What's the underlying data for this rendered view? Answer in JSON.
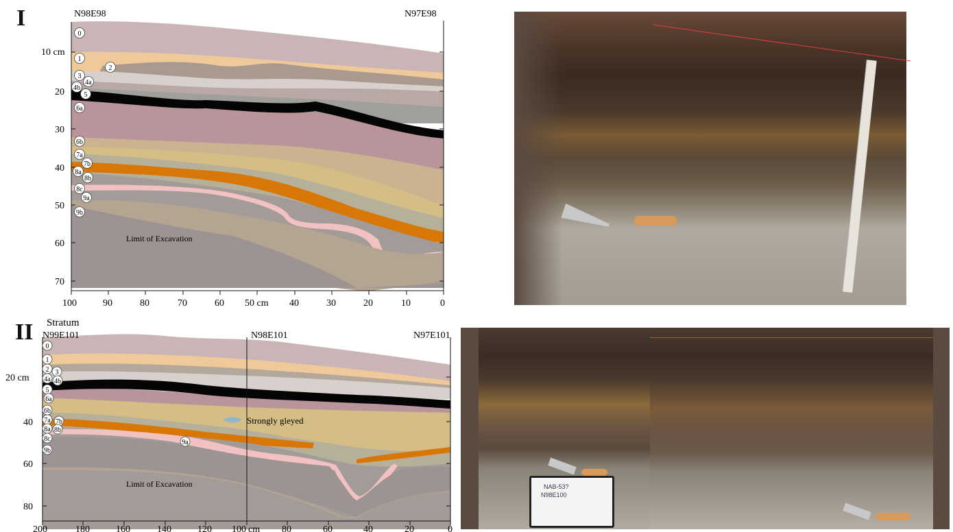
{
  "panel_I": {
    "label": "I",
    "left_grid": "N98E98",
    "right_grid": "N97E98",
    "depth_labels": [
      "10 cm",
      "20",
      "30",
      "40",
      "50",
      "60",
      "70"
    ],
    "x_labels": [
      "100",
      "90",
      "80",
      "70",
      "60",
      "50 cm",
      "40",
      "30",
      "20",
      "10",
      "0"
    ],
    "strata": [
      "0",
      "1",
      "2",
      "3",
      "4a",
      "4b",
      "5",
      "6a",
      "6b",
      "7a",
      "7b",
      "8a",
      "8b",
      "8c",
      "9a",
      "9b"
    ],
    "limit_text": "Limit of Excavation"
  },
  "panel_II": {
    "label": "II",
    "title": "Stratum",
    "left_grid": "N99E101",
    "mid_grid": "N98E101",
    "right_grid": "N97E101",
    "depth_labels": [
      "20 cm",
      "40",
      "60",
      "80"
    ],
    "x_labels": [
      "200",
      "180",
      "160",
      "140",
      "120",
      "100",
      "cm",
      "80",
      "60",
      "40",
      "20",
      "0"
    ],
    "strata": [
      "0",
      "1",
      "2",
      "3",
      "4a",
      "4b",
      "5",
      "6a",
      "6b",
      "7a",
      "7b",
      "8a",
      "8b",
      "8c",
      "9a",
      "9b"
    ],
    "annotation": "Strongly gleyed",
    "limit_text": "Limit of Excavation"
  },
  "photo_whiteboard": {
    "line1": "NAB-53?",
    "line2": "N98E100"
  },
  "colors": {
    "topsoil": "#c9b4b6",
    "tan": "#f0c99a",
    "gray_brown": "#a9998e",
    "light_gray": "#cdc5c2",
    "black": "#050505",
    "mauve": "#b9959b",
    "olive_tan": "#d4be85",
    "orange": "#d97706",
    "pink": "#f2c2c2",
    "dark_gray": "#9c9392"
  }
}
